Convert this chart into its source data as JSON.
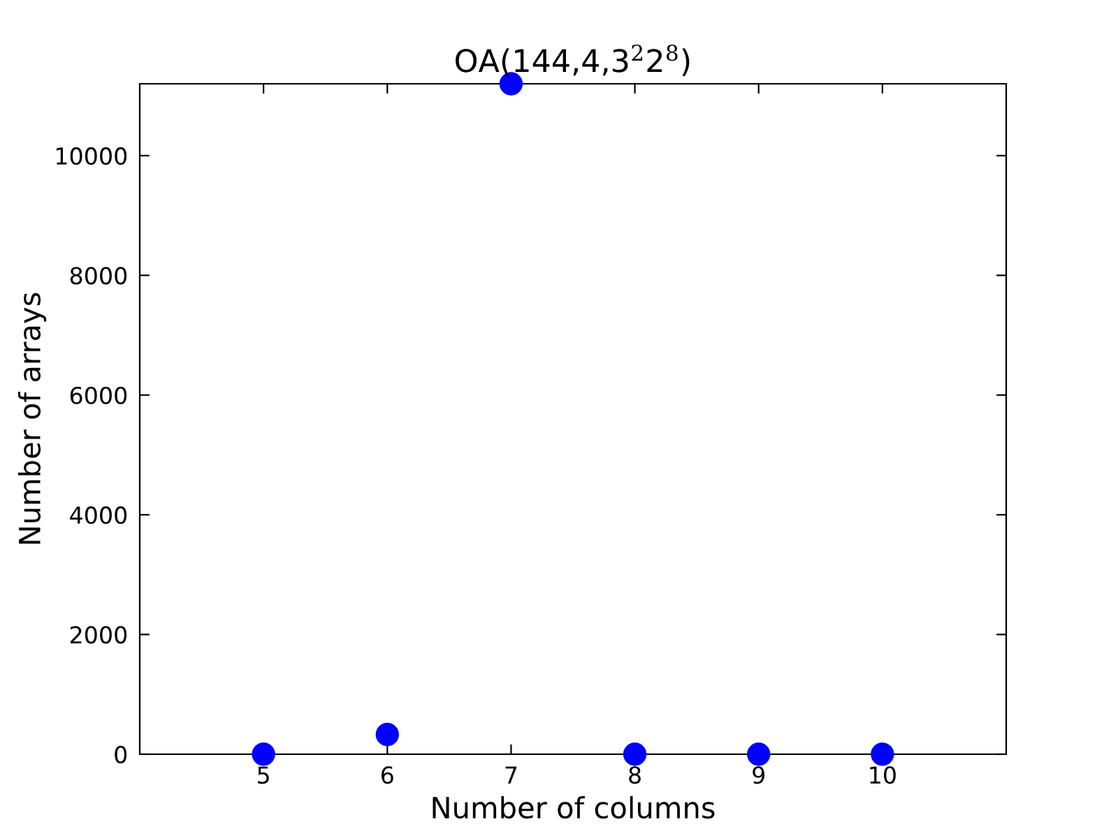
{
  "chart_data": {
    "type": "scatter",
    "title": "OA(144,4,3$^{2}$2$^{8}$)",
    "xlabel": "Number of columns",
    "ylabel": "Number of arrays",
    "x": [
      5,
      6,
      7,
      8,
      9,
      10
    ],
    "series": [
      {
        "color": "#0000ff",
        "values": [
          0,
          330,
          11200,
          0,
          0,
          0
        ]
      }
    ],
    "xlim": [
      4,
      11
    ],
    "xticks": [
      5,
      6,
      7,
      8,
      9,
      10
    ],
    "ylim": [
      0,
      11200
    ],
    "yticks": [
      0,
      2000,
      4000,
      6000,
      8000,
      10000
    ],
    "marker": "circle",
    "grid": false,
    "legend": false
  }
}
